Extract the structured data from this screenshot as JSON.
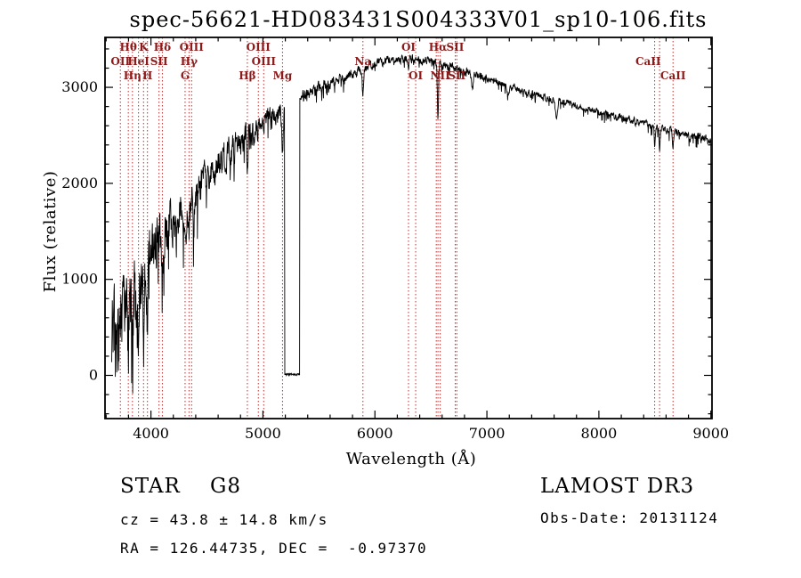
{
  "chart_data": {
    "type": "line",
    "title": "spec-56621-HD083431S004333V01_sp10-106.fits",
    "xlabel": "Wavelength (Å)",
    "ylabel": "Flux (relative)",
    "xlim": [
      3590,
      9010
    ],
    "ylim": [
      -450,
      3520
    ],
    "xticks": [
      4000,
      5000,
      6000,
      7000,
      8000,
      9000
    ],
    "yticks": [
      0,
      1000,
      2000,
      3000
    ],
    "x_minor_step": 200,
    "y_minor_step": 200,
    "grid": false,
    "legend": "none",
    "series": [
      {
        "name": "spectrum",
        "color": "#000000"
      }
    ],
    "line_marker_color": "#b03434",
    "line_label_color": "#8b1a1a",
    "spectrum": {
      "wl_start": 3650,
      "wl_end": 8997,
      "wl_step": 2.5,
      "seed": 20131124,
      "envelope": [
        [
          3690,
          250
        ],
        [
          3720,
          400
        ],
        [
          3760,
          550
        ],
        [
          3800,
          700
        ],
        [
          3850,
          850
        ],
        [
          3900,
          1000
        ],
        [
          3950,
          1100
        ],
        [
          4000,
          1250
        ],
        [
          4050,
          1400
        ],
        [
          4100,
          1480
        ],
        [
          4150,
          1550
        ],
        [
          4200,
          1630
        ],
        [
          4250,
          1680
        ],
        [
          4300,
          1700
        ],
        [
          4350,
          1780
        ],
        [
          4400,
          1880
        ],
        [
          4450,
          1960
        ],
        [
          4500,
          2040
        ],
        [
          4550,
          2100
        ],
        [
          4600,
          2180
        ],
        [
          4650,
          2260
        ],
        [
          4700,
          2320
        ],
        [
          4750,
          2380
        ],
        [
          4800,
          2430
        ],
        [
          4850,
          2470
        ],
        [
          4900,
          2520
        ],
        [
          4950,
          2570
        ],
        [
          5000,
          2620
        ],
        [
          5050,
          2670
        ],
        [
          5100,
          2710
        ],
        [
          5150,
          2740
        ],
        [
          5192,
          2770
        ],
        [
          5330,
          2880
        ],
        [
          5400,
          2930
        ],
        [
          5500,
          2990
        ],
        [
          5600,
          3040
        ],
        [
          5700,
          3090
        ],
        [
          5800,
          3140
        ],
        [
          5900,
          3190
        ],
        [
          6000,
          3240
        ],
        [
          6100,
          3280
        ],
        [
          6200,
          3300
        ],
        [
          6300,
          3300
        ],
        [
          6400,
          3290
        ],
        [
          6500,
          3270
        ],
        [
          6600,
          3240
        ],
        [
          6700,
          3210
        ],
        [
          6800,
          3170
        ],
        [
          6900,
          3130
        ],
        [
          7000,
          3090
        ],
        [
          7100,
          3050
        ],
        [
          7200,
          3010
        ],
        [
          7300,
          2970
        ],
        [
          7400,
          2930
        ],
        [
          7500,
          2900
        ],
        [
          7600,
          2870
        ],
        [
          7700,
          2840
        ],
        [
          7800,
          2810
        ],
        [
          7900,
          2770
        ],
        [
          8000,
          2740
        ],
        [
          8100,
          2710
        ],
        [
          8200,
          2680
        ],
        [
          8300,
          2650
        ],
        [
          8400,
          2620
        ],
        [
          8500,
          2590
        ],
        [
          8600,
          2560
        ],
        [
          8700,
          2530
        ],
        [
          8800,
          2500
        ],
        [
          8900,
          2470
        ],
        [
          9000,
          2440
        ]
      ],
      "noise": [
        [
          3690,
          650
        ],
        [
          3750,
          600
        ],
        [
          3800,
          500
        ],
        [
          3900,
          420
        ],
        [
          4000,
          350
        ],
        [
          4100,
          300
        ],
        [
          4200,
          280
        ],
        [
          4300,
          260
        ],
        [
          4400,
          240
        ],
        [
          4500,
          220
        ],
        [
          4600,
          200
        ],
        [
          4700,
          180
        ],
        [
          4800,
          160
        ],
        [
          4900,
          150
        ],
        [
          5000,
          140
        ],
        [
          5192,
          120
        ],
        [
          5330,
          80
        ],
        [
          5500,
          70
        ],
        [
          5700,
          60
        ],
        [
          5900,
          60
        ],
        [
          6100,
          50
        ],
        [
          6300,
          50
        ],
        [
          6500,
          50
        ],
        [
          6700,
          50
        ],
        [
          7000,
          45
        ],
        [
          7500,
          40
        ],
        [
          8000,
          40
        ],
        [
          8500,
          45
        ],
        [
          9000,
          55
        ]
      ],
      "dips": [
        [
          3798,
          350,
          3.5
        ],
        [
          3835,
          400,
          3.5
        ],
        [
          3889,
          450,
          4
        ],
        [
          3934,
          800,
          5
        ],
        [
          3969,
          700,
          5
        ],
        [
          4102,
          450,
          4.5
        ],
        [
          4227,
          300,
          4
        ],
        [
          4305,
          350,
          7
        ],
        [
          4340,
          400,
          4.5
        ],
        [
          4383,
          300,
          4
        ],
        [
          4861,
          500,
          4.5
        ],
        [
          5175,
          400,
          7
        ],
        [
          5893,
          280,
          6
        ],
        [
          6300,
          120,
          4
        ],
        [
          6563,
          600,
          4.5
        ],
        [
          6870,
          150,
          8
        ],
        [
          7190,
          100,
          8
        ],
        [
          7620,
          180,
          10
        ],
        [
          8498,
          200,
          4
        ],
        [
          8542,
          250,
          4
        ],
        [
          8662,
          220,
          4
        ]
      ],
      "gap": [
        5193,
        5328
      ],
      "gap_flux": 10,
      "edge_drop": {
        "wl": 9000,
        "flux": 600
      }
    },
    "spectral_lines": [
      {
        "wl": 3727,
        "label": "OII",
        "row": 2
      },
      {
        "wl": 3798,
        "label": "Hθ",
        "row": 1
      },
      {
        "wl": 3835,
        "label": "Hη",
        "row": 3
      },
      {
        "wl": 3889,
        "label": "HeI",
        "row": 2
      },
      {
        "wl": 3934,
        "label": "K",
        "row": 1
      },
      {
        "wl": 3969,
        "label": "H",
        "row": 3
      },
      {
        "wl": 4072,
        "label": "SII",
        "row": 2
      },
      {
        "wl": 4102,
        "label": "Hδ",
        "row": 1
      },
      {
        "wl": 4305,
        "label": "G",
        "row": 3
      },
      {
        "wl": 4340,
        "label": "Hγ",
        "row": 2
      },
      {
        "wl": 4363,
        "label": "OIII",
        "row": 1
      },
      {
        "wl": 4861,
        "label": "Hβ",
        "row": 3
      },
      {
        "wl": 4959,
        "label": "OIII",
        "row": 1
      },
      {
        "wl": 5007,
        "label": "OIII",
        "row": 2
      },
      {
        "wl": 5175,
        "label": "Mg",
        "row": 3
      },
      {
        "wl": 5893,
        "label": "Na",
        "row": 2
      },
      {
        "wl": 6300,
        "label": "OI",
        "row": 1
      },
      {
        "wl": 6364,
        "label": "OI",
        "row": 3
      },
      {
        "wl": 6548,
        "label": "",
        "row": 0
      },
      {
        "wl": 6563,
        "label": "Hα",
        "row": 1
      },
      {
        "wl": 6583,
        "label": "NII",
        "row": 3
      },
      {
        "wl": 6717,
        "label": "SII",
        "row": 1
      },
      {
        "wl": 6731,
        "label": "SII",
        "row": 3
      },
      {
        "wl": 8498,
        "lx": 8440,
        "label": "CaII",
        "row": 2
      },
      {
        "wl": 8542,
        "label": "",
        "row": 0
      },
      {
        "wl": 8662,
        "label": "CaII",
        "row": 3
      }
    ]
  },
  "footer": {
    "classification": "STAR    G8",
    "cz": "cz = 43.8 ± 14.8 km/s",
    "radec": "RA = 126.44735, DEC =  -0.97370",
    "survey": "LAMOST DR3",
    "obs_date": "Obs-Date: 20131124"
  }
}
